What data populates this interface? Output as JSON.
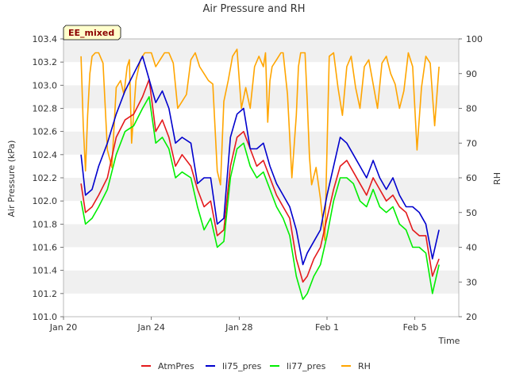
{
  "chart_data": {
    "type": "line",
    "title": "Air Pressure and RH",
    "badge": "EE_mixed",
    "xlabel": "Time",
    "ylabel": "Air Pressure (kPa)",
    "y2label": "RH",
    "x_ticks": [
      {
        "t": 0,
        "label": "Jan 20"
      },
      {
        "t": 4,
        "label": "Jan 24"
      },
      {
        "t": 8,
        "label": "Jan 28"
      },
      {
        "t": 12,
        "label": "Feb 1"
      },
      {
        "t": 16,
        "label": "Feb 5"
      }
    ],
    "x_range_days": [
      0,
      18
    ],
    "ylim": [
      101.0,
      103.4
    ],
    "y_ticks": [
      "101.0",
      "101.2",
      "101.4",
      "101.6",
      "101.8",
      "102.0",
      "102.2",
      "102.4",
      "102.6",
      "102.8",
      "103.0",
      "103.2",
      "103.4"
    ],
    "y2lim": [
      20,
      100
    ],
    "y2_ticks": [
      "20",
      "30",
      "40",
      "50",
      "60",
      "70",
      "80",
      "90",
      "100"
    ],
    "grid": "horizontal bands",
    "legend_position": "bottom",
    "series": [
      {
        "name": "AtmPres",
        "axis": "left",
        "color": "#e41a1c",
        "x": [
          0.8,
          1.0,
          1.3,
          1.6,
          2.0,
          2.4,
          2.8,
          3.2,
          3.6,
          3.9,
          4.2,
          4.5,
          4.8,
          5.1,
          5.4,
          5.8,
          6.1,
          6.4,
          6.7,
          7.0,
          7.3,
          7.6,
          7.9,
          8.2,
          8.5,
          8.8,
          9.1,
          9.4,
          9.7,
          10.0,
          10.3,
          10.6,
          10.9,
          11.1,
          11.4,
          11.7,
          12.0,
          12.3,
          12.6,
          12.9,
          13.2,
          13.5,
          13.8,
          14.1,
          14.4,
          14.7,
          15.0,
          15.3,
          15.6,
          15.9,
          16.2,
          16.5,
          16.8,
          17.1
        ],
        "y": [
          102.15,
          101.9,
          101.95,
          102.05,
          102.2,
          102.55,
          102.7,
          102.75,
          102.9,
          103.05,
          102.6,
          102.7,
          102.55,
          102.3,
          102.4,
          102.3,
          102.1,
          101.95,
          102.0,
          101.7,
          101.75,
          102.3,
          102.55,
          102.6,
          102.45,
          102.3,
          102.35,
          102.2,
          102.05,
          101.95,
          101.85,
          101.5,
          101.3,
          101.35,
          101.5,
          101.6,
          101.85,
          102.1,
          102.3,
          102.35,
          102.25,
          102.15,
          102.05,
          102.2,
          102.1,
          102.0,
          102.05,
          101.95,
          101.9,
          101.75,
          101.7,
          101.7,
          101.35,
          101.5
        ]
      },
      {
        "name": "li75_pres",
        "axis": "left",
        "color": "#0000cd",
        "x": [
          0.8,
          1.0,
          1.3,
          1.6,
          2.0,
          2.4,
          2.8,
          3.2,
          3.6,
          3.9,
          4.2,
          4.5,
          4.8,
          5.1,
          5.4,
          5.8,
          6.1,
          6.4,
          6.7,
          7.0,
          7.3,
          7.6,
          7.9,
          8.2,
          8.5,
          8.8,
          9.1,
          9.4,
          9.7,
          10.0,
          10.3,
          10.6,
          10.9,
          11.1,
          11.4,
          11.7,
          12.0,
          12.3,
          12.6,
          12.9,
          13.2,
          13.5,
          13.8,
          14.1,
          14.4,
          14.7,
          15.0,
          15.3,
          15.6,
          15.9,
          16.2,
          16.5,
          16.8,
          17.1
        ],
        "y": [
          102.4,
          102.05,
          102.1,
          102.3,
          102.5,
          102.75,
          102.95,
          103.1,
          103.25,
          103.05,
          102.85,
          102.95,
          102.8,
          102.5,
          102.55,
          102.5,
          102.15,
          102.2,
          102.2,
          101.8,
          101.85,
          102.55,
          102.75,
          102.8,
          102.45,
          102.45,
          102.5,
          102.3,
          102.15,
          102.05,
          101.95,
          101.75,
          101.45,
          101.55,
          101.65,
          101.75,
          102.05,
          102.3,
          102.55,
          102.5,
          102.4,
          102.3,
          102.2,
          102.35,
          102.2,
          102.1,
          102.2,
          102.05,
          101.95,
          101.95,
          101.9,
          101.8,
          101.5,
          101.75
        ]
      },
      {
        "name": "li77_pres",
        "axis": "left",
        "color": "#00ee00",
        "x": [
          0.8,
          1.0,
          1.3,
          1.6,
          2.0,
          2.4,
          2.8,
          3.2,
          3.6,
          3.9,
          4.2,
          4.5,
          4.8,
          5.1,
          5.4,
          5.8,
          6.1,
          6.4,
          6.7,
          7.0,
          7.3,
          7.6,
          7.9,
          8.2,
          8.5,
          8.8,
          9.1,
          9.4,
          9.7,
          10.0,
          10.3,
          10.6,
          10.9,
          11.1,
          11.4,
          11.7,
          12.0,
          12.3,
          12.6,
          12.9,
          13.2,
          13.5,
          13.8,
          14.1,
          14.4,
          14.7,
          15.0,
          15.3,
          15.6,
          15.9,
          16.2,
          16.5,
          16.8,
          17.1
        ],
        "y": [
          102.0,
          101.8,
          101.85,
          101.95,
          102.1,
          102.4,
          102.6,
          102.65,
          102.8,
          102.9,
          102.5,
          102.55,
          102.45,
          102.2,
          102.25,
          102.2,
          101.95,
          101.75,
          101.85,
          101.6,
          101.65,
          102.2,
          102.45,
          102.5,
          102.3,
          102.2,
          102.25,
          102.1,
          101.95,
          101.85,
          101.7,
          101.35,
          101.15,
          101.2,
          101.35,
          101.45,
          101.7,
          102.0,
          102.2,
          102.2,
          102.15,
          102.0,
          101.95,
          102.1,
          101.95,
          101.9,
          101.95,
          101.8,
          101.75,
          101.6,
          101.6,
          101.55,
          101.2,
          101.45
        ]
      },
      {
        "name": "RH",
        "axis": "right",
        "color": "#ffa500",
        "x": [
          0.8,
          0.9,
          1.0,
          1.1,
          1.2,
          1.3,
          1.45,
          1.6,
          1.8,
          2.0,
          2.2,
          2.4,
          2.6,
          2.75,
          2.9,
          3.0,
          3.1,
          3.3,
          3.5,
          3.7,
          4.0,
          4.2,
          4.4,
          4.6,
          4.8,
          5.0,
          5.2,
          5.4,
          5.6,
          5.8,
          6.0,
          6.2,
          6.4,
          6.6,
          6.8,
          7.0,
          7.15,
          7.3,
          7.5,
          7.7,
          7.9,
          8.1,
          8.3,
          8.5,
          8.7,
          8.9,
          9.1,
          9.2,
          9.3,
          9.4,
          9.5,
          9.7,
          9.9,
          10.0,
          10.2,
          10.4,
          10.6,
          10.7,
          10.8,
          11.0,
          11.1,
          11.2,
          11.3,
          11.5,
          11.7,
          11.9,
          12.1,
          12.3,
          12.5,
          12.7,
          12.9,
          13.1,
          13.3,
          13.5,
          13.7,
          13.9,
          14.1,
          14.3,
          14.5,
          14.7,
          14.9,
          15.1,
          15.3,
          15.5,
          15.7,
          15.9,
          16.1,
          16.3,
          16.5,
          16.7,
          16.9,
          17.1
        ],
        "y": [
          95,
          75,
          62,
          78,
          90,
          95,
          96,
          96,
          93,
          68,
          63,
          86,
          88,
          84,
          92,
          94,
          70,
          88,
          94,
          96,
          96,
          92,
          94,
          96,
          96,
          93,
          80,
          82,
          84,
          94,
          96,
          92,
          90,
          88,
          87,
          62,
          58,
          82,
          88,
          95,
          97,
          80,
          86,
          80,
          92,
          95,
          92,
          96,
          76,
          88,
          92,
          94,
          96,
          96,
          84,
          60,
          78,
          92,
          96,
          96,
          82,
          66,
          58,
          63,
          54,
          42,
          95,
          96,
          86,
          78,
          92,
          95,
          86,
          80,
          92,
          94,
          87,
          80,
          93,
          95,
          90,
          87,
          80,
          85,
          96,
          92,
          68,
          86,
          95,
          93,
          75,
          92
        ]
      }
    ]
  },
  "legend": [
    {
      "name": "AtmPres",
      "color": "#e41a1c"
    },
    {
      "name": "li75_pres",
      "color": "#0000cd"
    },
    {
      "name": "li77_pres",
      "color": "#00ee00"
    },
    {
      "name": "RH",
      "color": "#ffa500"
    }
  ]
}
